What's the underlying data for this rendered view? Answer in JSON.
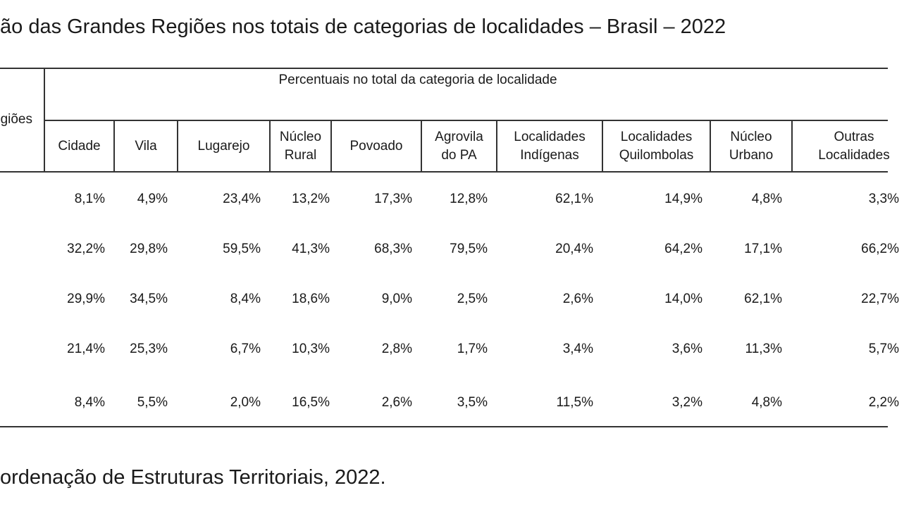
{
  "title": "ão das Grandes Regiões nos totais de categorias de localidades – Brasil – 2022",
  "footer": "ordenação de Estruturas Territoriais, 2022.",
  "table": {
    "row_header": "giões",
    "group_header": "Percentuais no total da categoria de localidade",
    "columns": [
      [
        "Cidade"
      ],
      [
        "Vila"
      ],
      [
        "Lugarejo"
      ],
      [
        "Núcleo",
        "Rural"
      ],
      [
        "Povoado"
      ],
      [
        "Agrovila",
        "do PA"
      ],
      [
        "Localidades",
        "Indígenas"
      ],
      [
        "Localidades",
        "Quilombolas"
      ],
      [
        "Núcleo",
        "Urbano"
      ],
      [
        "Outras",
        "Localidades"
      ]
    ],
    "rows": [
      [
        "8,1%",
        "4,9%",
        "23,4%",
        "13,2%",
        "17,3%",
        "12,8%",
        "62,1%",
        "14,9%",
        "4,8%",
        "3,3%"
      ],
      [
        "32,2%",
        "29,8%",
        "59,5%",
        "41,3%",
        "68,3%",
        "79,5%",
        "20,4%",
        "64,2%",
        "17,1%",
        "66,2%"
      ],
      [
        "29,9%",
        "34,5%",
        "8,4%",
        "18,6%",
        "9,0%",
        "2,5%",
        "2,6%",
        "14,0%",
        "62,1%",
        "22,7%"
      ],
      [
        "21,4%",
        "25,3%",
        "6,7%",
        "10,3%",
        "2,8%",
        "1,7%",
        "3,4%",
        "3,6%",
        "11,3%",
        "5,7%"
      ],
      [
        "8,4%",
        "5,5%",
        "2,0%",
        "16,5%",
        "2,6%",
        "3,5%",
        "11,5%",
        "3,2%",
        "4,8%",
        "2,2%"
      ]
    ]
  }
}
